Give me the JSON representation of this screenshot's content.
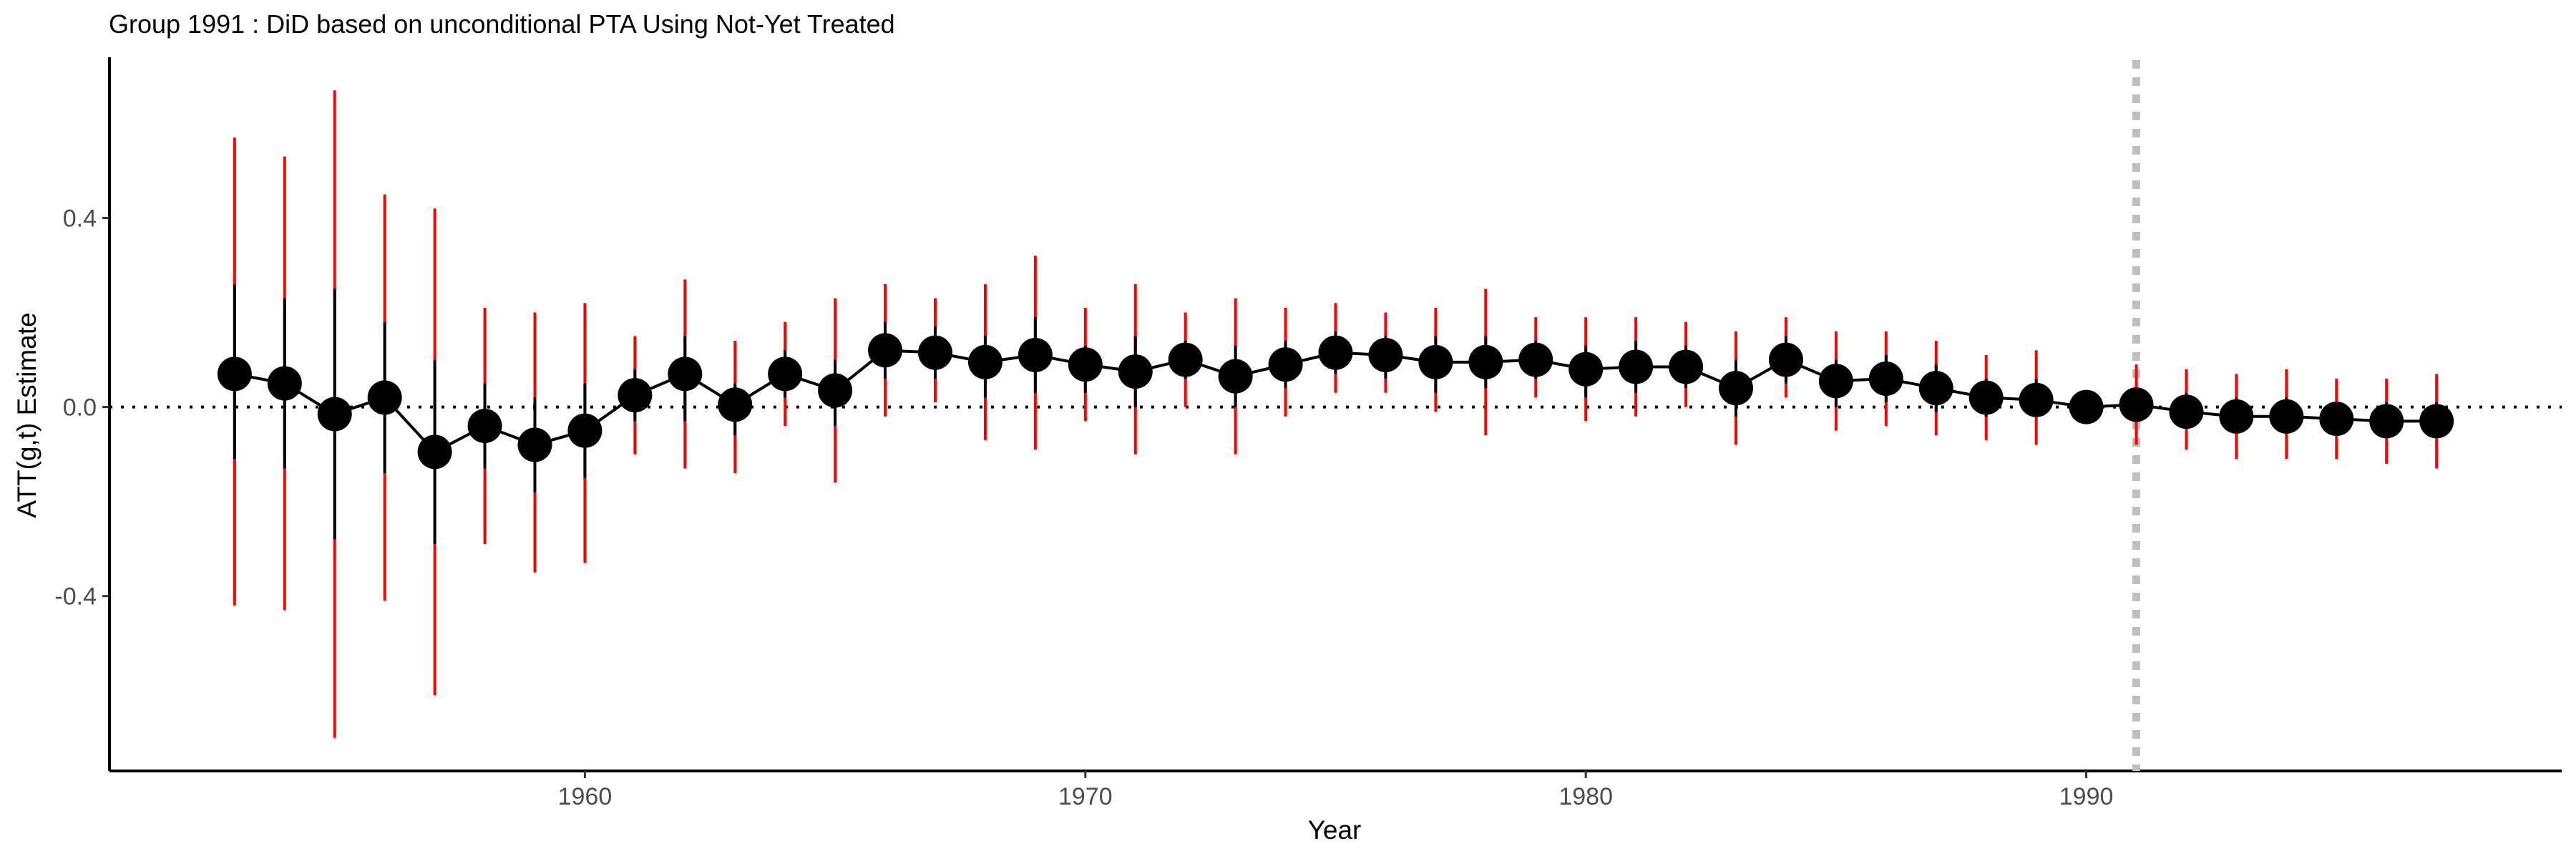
{
  "chart_data": {
    "type": "scatter",
    "title": "Group 1991 : DiD based on unconditional PTA Using Not-Yet Treated",
    "xlabel": "Year",
    "ylabel": "ATT(g,t) Estimate",
    "xlim": [
      1950.5,
      1999.5
    ],
    "ylim": [
      -0.77,
      0.74
    ],
    "x_ticks": [
      1960,
      1970,
      1980,
      1990
    ],
    "x_tick_labels": [
      "1960",
      "1970",
      "1980",
      "1990"
    ],
    "y_ticks": [
      -0.4,
      0.0,
      0.4
    ],
    "y_tick_labels": [
      "-0.4",
      "0.0",
      "0.4"
    ],
    "grid": false,
    "legend": "none",
    "reference_line": {
      "y": 0,
      "style": "dotted"
    },
    "treatment_line": {
      "x": 1991,
      "style": "dotted",
      "color": "#bfbfbf"
    },
    "colors": {
      "points": "#000000",
      "band": "#ff0000",
      "inner": "#000000"
    },
    "series": [
      {
        "x": [
          1953,
          1954,
          1955,
          1956,
          1957,
          1958,
          1959,
          1960,
          1961,
          1962,
          1963,
          1964,
          1965,
          1966,
          1967,
          1968,
          1969,
          1970,
          1971,
          1972,
          1973,
          1974,
          1975,
          1976,
          1977,
          1978,
          1979,
          1980,
          1981,
          1982,
          1983,
          1984,
          1985,
          1986,
          1987,
          1988,
          1989,
          1990,
          1991,
          1992,
          1993,
          1994,
          1995,
          1996,
          1997
        ],
        "y": [
          0.07,
          0.05,
          -0.015,
          0.02,
          -0.095,
          -0.04,
          -0.08,
          -0.05,
          0.025,
          0.07,
          0.005,
          0.07,
          0.035,
          0.12,
          0.115,
          0.095,
          0.11,
          0.09,
          0.075,
          0.1,
          0.065,
          0.09,
          0.115,
          0.11,
          0.095,
          0.095,
          0.1,
          0.08,
          0.085,
          0.085,
          0.04,
          0.1,
          0.055,
          0.06,
          0.04,
          0.02,
          0.015,
          0.0,
          0.005,
          -0.01,
          -0.02,
          -0.02,
          -0.025,
          -0.03,
          -0.03
        ],
        "ci_lower": [
          -0.42,
          -0.43,
          -0.7,
          -0.41,
          -0.61,
          -0.29,
          -0.35,
          -0.33,
          -0.1,
          -0.13,
          -0.14,
          -0.04,
          -0.16,
          -0.02,
          0.01,
          -0.07,
          -0.09,
          -0.03,
          -0.1,
          0.0,
          -0.1,
          -0.02,
          0.03,
          0.03,
          -0.01,
          -0.06,
          0.02,
          -0.03,
          -0.02,
          0.0,
          -0.08,
          0.02,
          -0.05,
          -0.04,
          -0.06,
          -0.07,
          -0.08,
          0.0,
          -0.08,
          -0.09,
          -0.11,
          -0.11,
          -0.11,
          -0.12,
          -0.13
        ],
        "ci_upper": [
          0.57,
          0.53,
          0.67,
          0.45,
          0.42,
          0.21,
          0.2,
          0.22,
          0.15,
          0.27,
          0.14,
          0.18,
          0.23,
          0.26,
          0.23,
          0.26,
          0.32,
          0.21,
          0.26,
          0.2,
          0.23,
          0.21,
          0.22,
          0.2,
          0.21,
          0.25,
          0.19,
          0.19,
          0.19,
          0.18,
          0.16,
          0.19,
          0.16,
          0.16,
          0.14,
          0.11,
          0.12,
          0.0,
          0.09,
          0.08,
          0.07,
          0.08,
          0.06,
          0.06,
          0.07
        ],
        "inner_lower": [
          -0.11,
          -0.13,
          -0.28,
          -0.14,
          -0.29,
          -0.13,
          -0.18,
          -0.15,
          -0.03,
          -0.03,
          -0.06,
          0.02,
          -0.04,
          0.06,
          0.06,
          0.02,
          0.03,
          0.03,
          0.0,
          0.06,
          0.0,
          0.04,
          0.07,
          0.06,
          0.03,
          0.04,
          0.06,
          0.02,
          0.03,
          0.04,
          -0.02,
          0.05,
          0.0,
          0.01,
          -0.01,
          -0.02,
          -0.02,
          0.0,
          -0.03,
          -0.04,
          -0.05,
          -0.05,
          -0.05,
          -0.06,
          -0.06
        ],
        "inner_upper": [
          0.26,
          0.23,
          0.25,
          0.18,
          0.1,
          0.05,
          0.02,
          0.05,
          0.08,
          0.15,
          0.05,
          0.12,
          0.1,
          0.18,
          0.17,
          0.15,
          0.19,
          0.13,
          0.15,
          0.14,
          0.13,
          0.14,
          0.16,
          0.15,
          0.15,
          0.15,
          0.14,
          0.13,
          0.14,
          0.13,
          0.1,
          0.15,
          0.1,
          0.11,
          0.09,
          0.06,
          0.06,
          0.0,
          0.04,
          0.03,
          0.02,
          0.02,
          0.01,
          0.01,
          0.01
        ]
      }
    ]
  }
}
